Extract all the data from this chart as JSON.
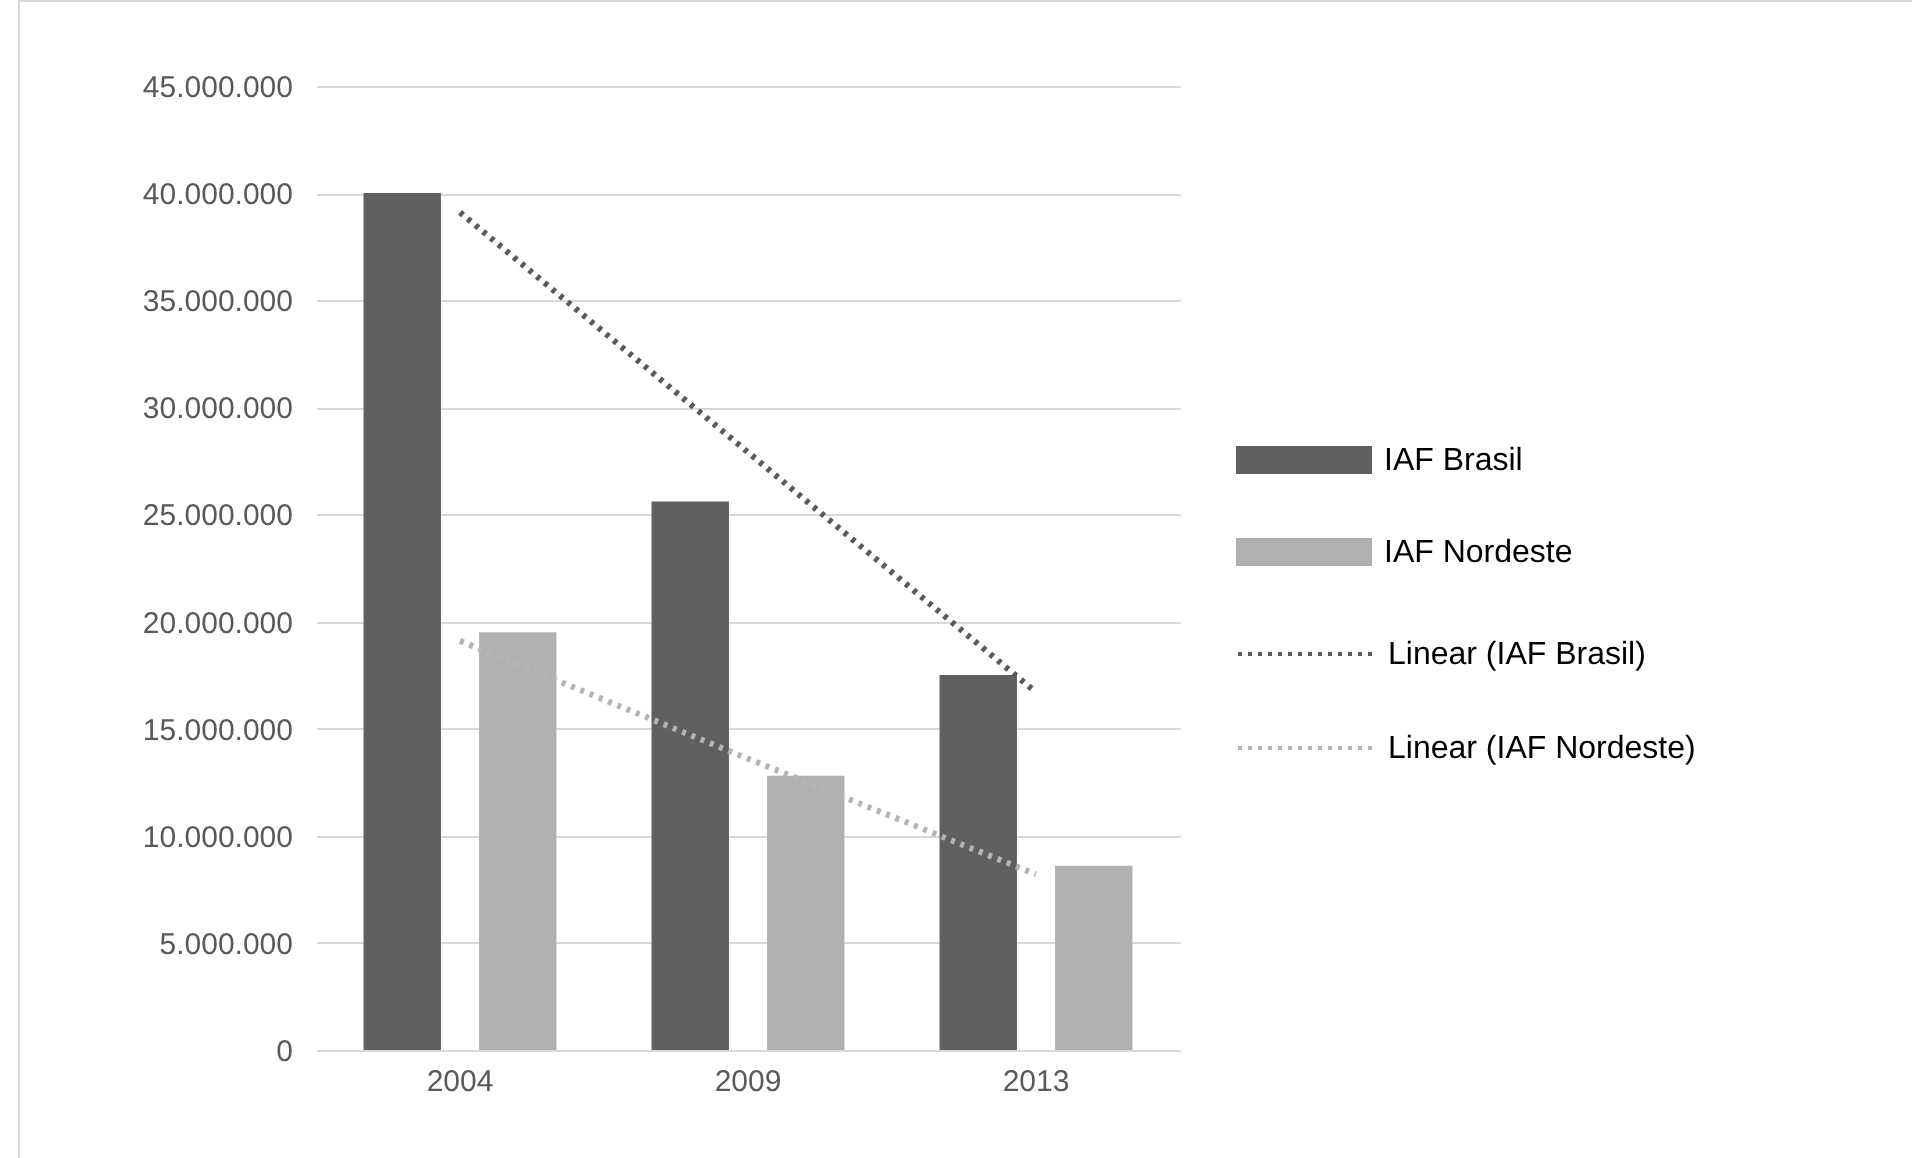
{
  "chart_data": {
    "type": "bar",
    "categories": [
      "2004",
      "2009",
      "2013"
    ],
    "series": [
      {
        "name": "IAF Brasil",
        "color": "#5f5f5f",
        "values": [
          40000000,
          25600000,
          17500000
        ]
      },
      {
        "name": "IAF Nordeste",
        "color": "#b0b0b0",
        "values": [
          19500000,
          12800000,
          8600000
        ]
      },
      {
        "name": "Linear (IAF Brasil)",
        "type": "line",
        "color": "#595959",
        "values": [
          39100000,
          27900000,
          16700000
        ]
      },
      {
        "name": "Linear (IAF Nordeste)",
        "type": "line",
        "color": "#b4b4b4",
        "values": [
          19100000,
          13600000,
          8200000
        ]
      }
    ],
    "ylim": [
      0,
      45000000
    ],
    "yticks": [
      {
        "value": 0,
        "label": "0"
      },
      {
        "value": 5000000,
        "label": "5.000.000"
      },
      {
        "value": 10000000,
        "label": "10.000.000"
      },
      {
        "value": 15000000,
        "label": "15.000.000"
      },
      {
        "value": 20000000,
        "label": "20.000.000"
      },
      {
        "value": 25000000,
        "label": "25.000.000"
      },
      {
        "value": 30000000,
        "label": "30.000.000"
      },
      {
        "value": 35000000,
        "label": "35.000.000"
      },
      {
        "value": 40000000,
        "label": "40.000.000"
      },
      {
        "value": 45000000,
        "label": "45.000.000"
      }
    ],
    "grid": "y",
    "legend": "right",
    "marker": "none",
    "line_style": "dotted"
  }
}
